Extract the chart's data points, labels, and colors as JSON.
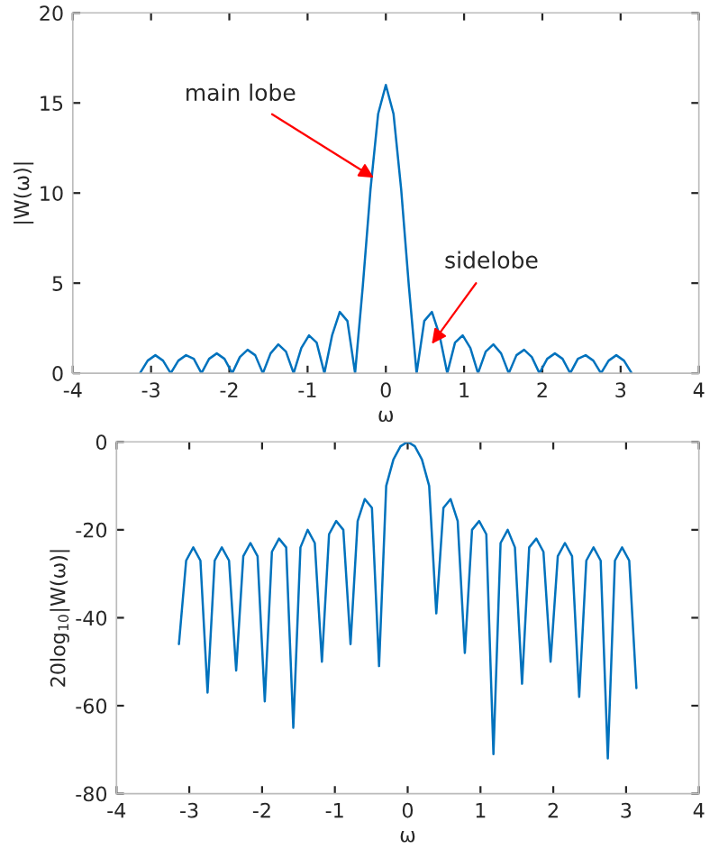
{
  "chart_data": [
    {
      "type": "line",
      "xlabel": "ω",
      "ylabel": "|W(ω)|",
      "xlim": [
        -4,
        4
      ],
      "ylim": [
        0,
        20
      ],
      "xticks": [
        -4,
        -3,
        -2,
        -1,
        0,
        1,
        2,
        3,
        4
      ],
      "yticks": [
        0,
        5,
        10,
        15,
        20
      ],
      "annotations": [
        {
          "text": "main lobe",
          "x": -0.1,
          "y": 10.7
        },
        {
          "text": "sidelobe",
          "x": 0.55,
          "y": 1.4
        }
      ],
      "x": [
        -3.142,
        -3.043,
        -2.945,
        -2.847,
        -2.749,
        -2.651,
        -2.553,
        -2.454,
        -2.356,
        -2.258,
        -2.16,
        -2.062,
        -1.963,
        -1.865,
        -1.767,
        -1.669,
        -1.571,
        -1.473,
        -1.374,
        -1.276,
        -1.178,
        -1.08,
        -0.982,
        -0.884,
        -0.785,
        -0.687,
        -0.589,
        -0.491,
        -0.393,
        -0.295,
        -0.196,
        -0.098,
        0,
        0.098,
        0.196,
        0.295,
        0.393,
        0.491,
        0.589,
        0.687,
        0.785,
        0.884,
        0.982,
        1.08,
        1.178,
        1.276,
        1.374,
        1.473,
        1.571,
        1.669,
        1.767,
        1.865,
        1.963,
        2.062,
        2.16,
        2.258,
        2.356,
        2.454,
        2.553,
        2.651,
        2.749,
        2.847,
        2.945,
        3.043,
        3.142
      ],
      "series": [
        {
          "color": "#0072bd",
          "values": [
            0,
            0.7,
            1.0,
            0.7,
            0,
            0.7,
            1.0,
            0.8,
            0,
            0.8,
            1.1,
            0.8,
            0,
            0.9,
            1.3,
            1.0,
            0,
            1.1,
            1.6,
            1.2,
            0,
            1.4,
            2.1,
            1.7,
            0,
            2.1,
            3.4,
            2.9,
            0,
            4.8,
            10.2,
            14.4,
            16,
            14.4,
            10.2,
            4.8,
            0,
            2.9,
            3.4,
            2.1,
            0,
            1.7,
            2.1,
            1.4,
            0,
            1.2,
            1.6,
            1.1,
            0,
            1.0,
            1.3,
            0.9,
            0,
            0.8,
            1.1,
            0.8,
            0,
            0.8,
            1.0,
            0.7,
            0,
            0.7,
            1.0,
            0.7,
            0
          ]
        }
      ]
    },
    {
      "type": "line",
      "xlabel": "ω",
      "ylabel": "20log$_{10}$|W(ω)|",
      "xlim": [
        -4,
        4
      ],
      "ylim": [
        -80,
        0
      ],
      "xticks": [
        -4,
        -3,
        -2,
        -1,
        0,
        1,
        2,
        3,
        4
      ],
      "yticks": [
        -80,
        -60,
        -40,
        -20,
        0
      ],
      "x": [
        -3.142,
        -3.043,
        -2.945,
        -2.847,
        -2.749,
        -2.651,
        -2.553,
        -2.454,
        -2.356,
        -2.258,
        -2.16,
        -2.062,
        -1.963,
        -1.865,
        -1.767,
        -1.669,
        -1.571,
        -1.473,
        -1.374,
        -1.276,
        -1.178,
        -1.08,
        -0.982,
        -0.884,
        -0.785,
        -0.687,
        -0.589,
        -0.491,
        -0.393,
        -0.295,
        -0.196,
        -0.098,
        0,
        0.098,
        0.196,
        0.295,
        0.393,
        0.491,
        0.589,
        0.687,
        0.785,
        0.884,
        0.982,
        1.08,
        1.178,
        1.276,
        1.374,
        1.473,
        1.571,
        1.669,
        1.767,
        1.865,
        1.963,
        2.062,
        2.16,
        2.258,
        2.356,
        2.454,
        2.553,
        2.651,
        2.749,
        2.847,
        2.945,
        3.043,
        3.142
      ],
      "series": [
        {
          "color": "#0072bd",
          "values": [
            -46,
            -27,
            -24,
            -27,
            -57,
            -27,
            -24,
            -27,
            -52,
            -26,
            -23,
            -26,
            -59,
            -25,
            -22,
            -24,
            -65,
            -24,
            -20,
            -23,
            -50,
            -21,
            -18,
            -20,
            -46,
            -18,
            -13,
            -15,
            -51,
            -10,
            -4,
            -1,
            0,
            -1,
            -4,
            -10,
            -39,
            -15,
            -13,
            -18,
            -48,
            -20,
            -18,
            -21,
            -71,
            -23,
            -20,
            -24,
            -55,
            -24,
            -22,
            -25,
            -50,
            -26,
            -23,
            -26,
            -58,
            -27,
            -24,
            -27,
            -72,
            -27,
            -24,
            -27,
            -56
          ]
        }
      ]
    }
  ]
}
